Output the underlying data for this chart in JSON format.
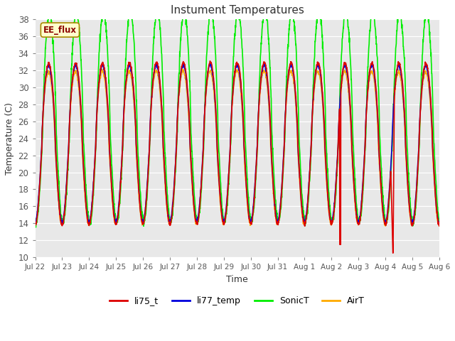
{
  "title": "Instument Temperatures",
  "ylabel": "Temperature (C)",
  "xlabel": "Time",
  "annotation": "EE_flux",
  "ylim": [
    10,
    38
  ],
  "fig_bg": "#ffffff",
  "plot_bg": "#e8e8e8",
  "series": {
    "li75_t": {
      "color": "#dd0000",
      "lw": 1.2
    },
    "li77_temp": {
      "color": "#0000dd",
      "lw": 1.2
    },
    "SonicT": {
      "color": "#00ee00",
      "lw": 1.2
    },
    "AirT": {
      "color": "#ffaa00",
      "lw": 1.2
    }
  },
  "x_ticks": [
    "Jul 22",
    "Jul 23",
    "Jul 24",
    "Jul 25",
    "Jul 26",
    "Jul 27",
    "Jul 28",
    "Jul 29",
    "Jul 30",
    "Jul 31",
    "Aug 1",
    "Aug 2",
    "Aug 3",
    "Aug 4",
    "Aug 5",
    "Aug 6"
  ],
  "n_days": 15,
  "pts_per_day": 144,
  "figsize": [
    6.4,
    4.8
  ],
  "dpi": 100
}
